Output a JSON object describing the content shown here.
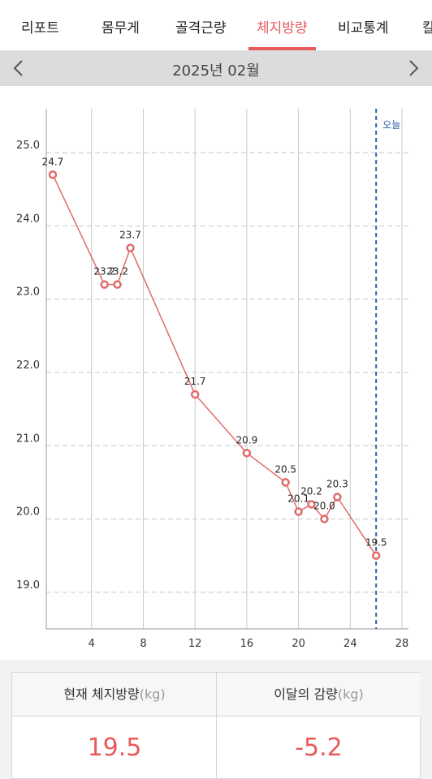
{
  "tabs": [
    {
      "label": "리포트",
      "active": false
    },
    {
      "label": "몸무게",
      "active": false
    },
    {
      "label": "골격근량",
      "active": false
    },
    {
      "label": "체지방량",
      "active": true
    },
    {
      "label": "비교통계",
      "active": false
    },
    {
      "label": "칼",
      "active": false
    }
  ],
  "month_nav": {
    "title": "2025년 02월",
    "prev_icon": "chevron-left-icon",
    "next_icon": "chevron-right-icon"
  },
  "colors": {
    "accent": "#e85a5a",
    "today_line": "#2f5fa8",
    "line": "#e06b6b"
  },
  "chart_data": {
    "type": "line",
    "x": [
      1,
      5,
      6,
      7,
      12,
      16,
      19,
      20,
      21,
      22,
      23,
      26
    ],
    "values": [
      24.7,
      23.2,
      23.2,
      23.7,
      21.7,
      20.9,
      20.5,
      20.1,
      20.2,
      20.0,
      20.3,
      19.5
    ],
    "data_labels": [
      "24.7",
      "23.2",
      "23.2",
      "23.7",
      "21.7",
      "20.9",
      "20.5",
      "20.1",
      "20.2",
      "20.0",
      "20.3",
      "19.5"
    ],
    "xlim": [
      0.5,
      28.5
    ],
    "ylim": [
      18.5,
      25.6
    ],
    "x_ticks": [
      4,
      8,
      12,
      16,
      20,
      24,
      28
    ],
    "y_ticks": [
      19.0,
      20.0,
      21.0,
      22.0,
      23.0,
      24.0,
      25.0
    ],
    "y_tick_labels": [
      "19.0",
      "20.0",
      "21.0",
      "22.0",
      "23.0",
      "24.0",
      "25.0"
    ],
    "today_x": 26,
    "today_label": "오늘",
    "grid": true
  },
  "stats": {
    "current_label": "현재 체지방량",
    "current_unit": "(kg)",
    "current_value": "19.5",
    "change_label": "이달의 감량",
    "change_unit": "(kg)",
    "change_value": "-5.2"
  }
}
